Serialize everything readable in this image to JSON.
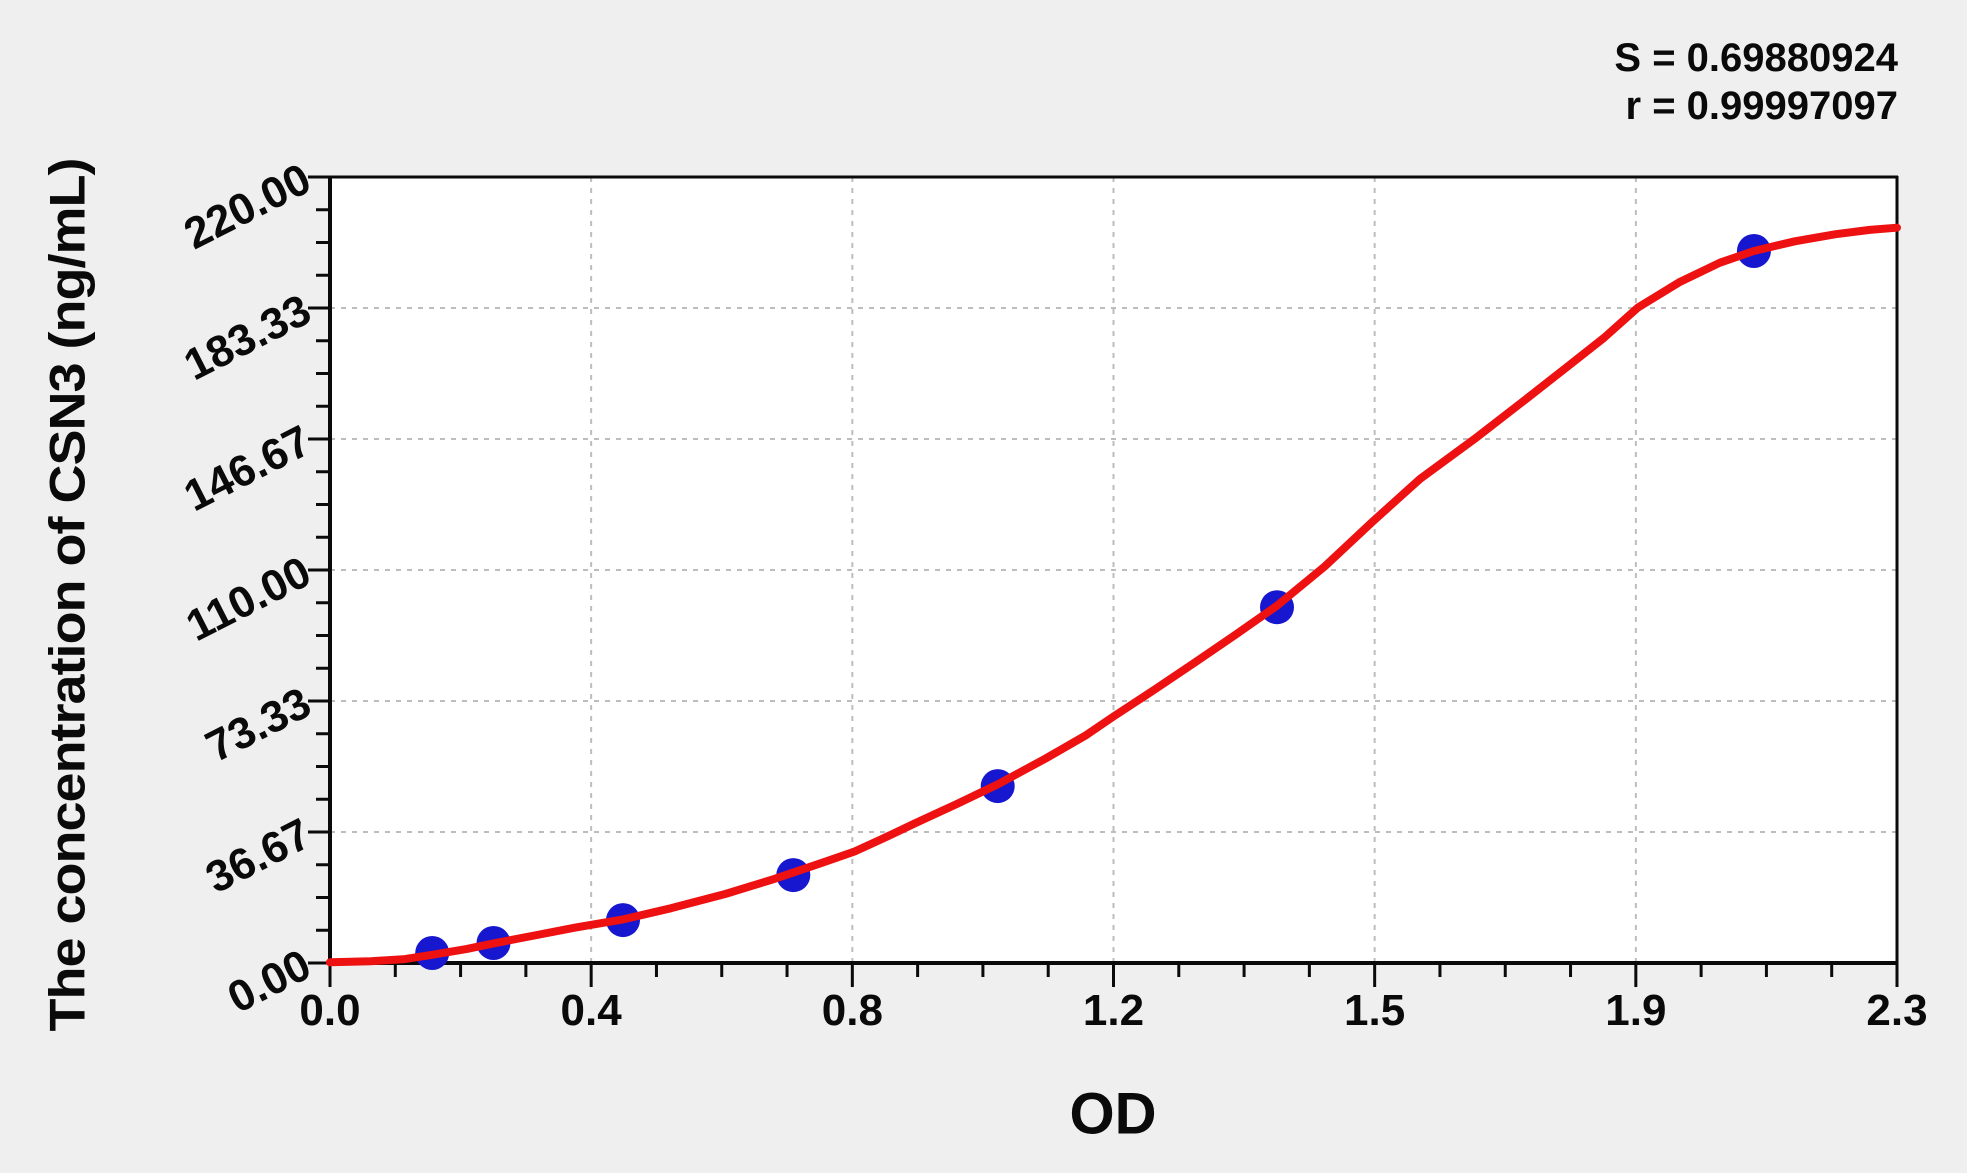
{
  "page": {
    "background": "#efefef",
    "plot_background": "#ffffff"
  },
  "stats": {
    "s_label": "S = 0.69880924",
    "r_label": "r = 0.99997097"
  },
  "chart_data": {
    "type": "scatter",
    "title": "",
    "xlabel": "OD",
    "ylabel": "The concentration of CSN3 (ng/mL)",
    "xlim": [
      0,
      2.3
    ],
    "ylim": [
      0,
      220
    ],
    "grid": {
      "show": true,
      "style": "dashed",
      "color": "#bdbdbd",
      "on": "major-ticks"
    },
    "legend_position": "none",
    "x_ticks": {
      "major_values": [
        0,
        0.3833,
        0.7667,
        1.15,
        1.5333,
        1.9167,
        2.3
      ],
      "major_labels": [
        "0.0",
        "0.4",
        "0.8",
        "1.2",
        "1.5",
        "1.9",
        "2.3"
      ],
      "minor_divisions_per_major": 4
    },
    "y_ticks": {
      "major_values": [
        0,
        36.67,
        73.33,
        110,
        146.67,
        183.33,
        220
      ],
      "major_labels": [
        "0.00",
        "36.67",
        "73.33",
        "110.00",
        "146.67",
        "183.33",
        "220.00"
      ],
      "minor_divisions_per_major": 4,
      "label_rotation_deg": -27
    },
    "fit_stats": {
      "S": "0.69880924",
      "r": "0.99997097"
    },
    "series": [
      {
        "name": "standard-points",
        "type": "scatter",
        "color": "#1717d0",
        "marker": "circle",
        "marker_radius": 17,
        "points": [
          [
            0.15,
            2.8
          ],
          [
            0.24,
            5.6
          ],
          [
            0.43,
            12.0
          ],
          [
            0.68,
            24.6
          ],
          [
            0.98,
            49.5
          ],
          [
            1.39,
            99.6
          ],
          [
            2.09,
            199.3
          ]
        ]
      },
      {
        "name": "fitted-curve",
        "type": "line",
        "color": "#ee1111",
        "stroke_width": 8,
        "points": [
          [
            0.0,
            0.2
          ],
          [
            0.06,
            0.5
          ],
          [
            0.11,
            1.1
          ],
          [
            0.15,
            2.3
          ],
          [
            0.2,
            3.9
          ],
          [
            0.24,
            5.5
          ],
          [
            0.3,
            7.7
          ],
          [
            0.36,
            9.9
          ],
          [
            0.43,
            12.2
          ],
          [
            0.5,
            15.3
          ],
          [
            0.58,
            19.3
          ],
          [
            0.65,
            23.4
          ],
          [
            0.72,
            27.9
          ],
          [
            0.77,
            31.2
          ],
          [
            0.81,
            34.7
          ],
          [
            0.86,
            39.2
          ],
          [
            0.92,
            44.5
          ],
          [
            0.98,
            50.0
          ],
          [
            1.05,
            57.2
          ],
          [
            1.11,
            63.8
          ],
          [
            1.15,
            69.0
          ],
          [
            1.21,
            76.5
          ],
          [
            1.27,
            84.2
          ],
          [
            1.33,
            92.0
          ],
          [
            1.39,
            100.0
          ],
          [
            1.46,
            111.0
          ],
          [
            1.53,
            123.5
          ],
          [
            1.6,
            135.5
          ],
          [
            1.68,
            146.7
          ],
          [
            1.76,
            158.5
          ],
          [
            1.82,
            167.5
          ],
          [
            1.87,
            175.0
          ],
          [
            1.92,
            183.5
          ],
          [
            1.98,
            190.5
          ],
          [
            2.04,
            196.0
          ],
          [
            2.09,
            199.3
          ],
          [
            2.15,
            202.0
          ],
          [
            2.21,
            204.0
          ],
          [
            2.26,
            205.2
          ],
          [
            2.3,
            205.8
          ]
        ]
      }
    ]
  }
}
